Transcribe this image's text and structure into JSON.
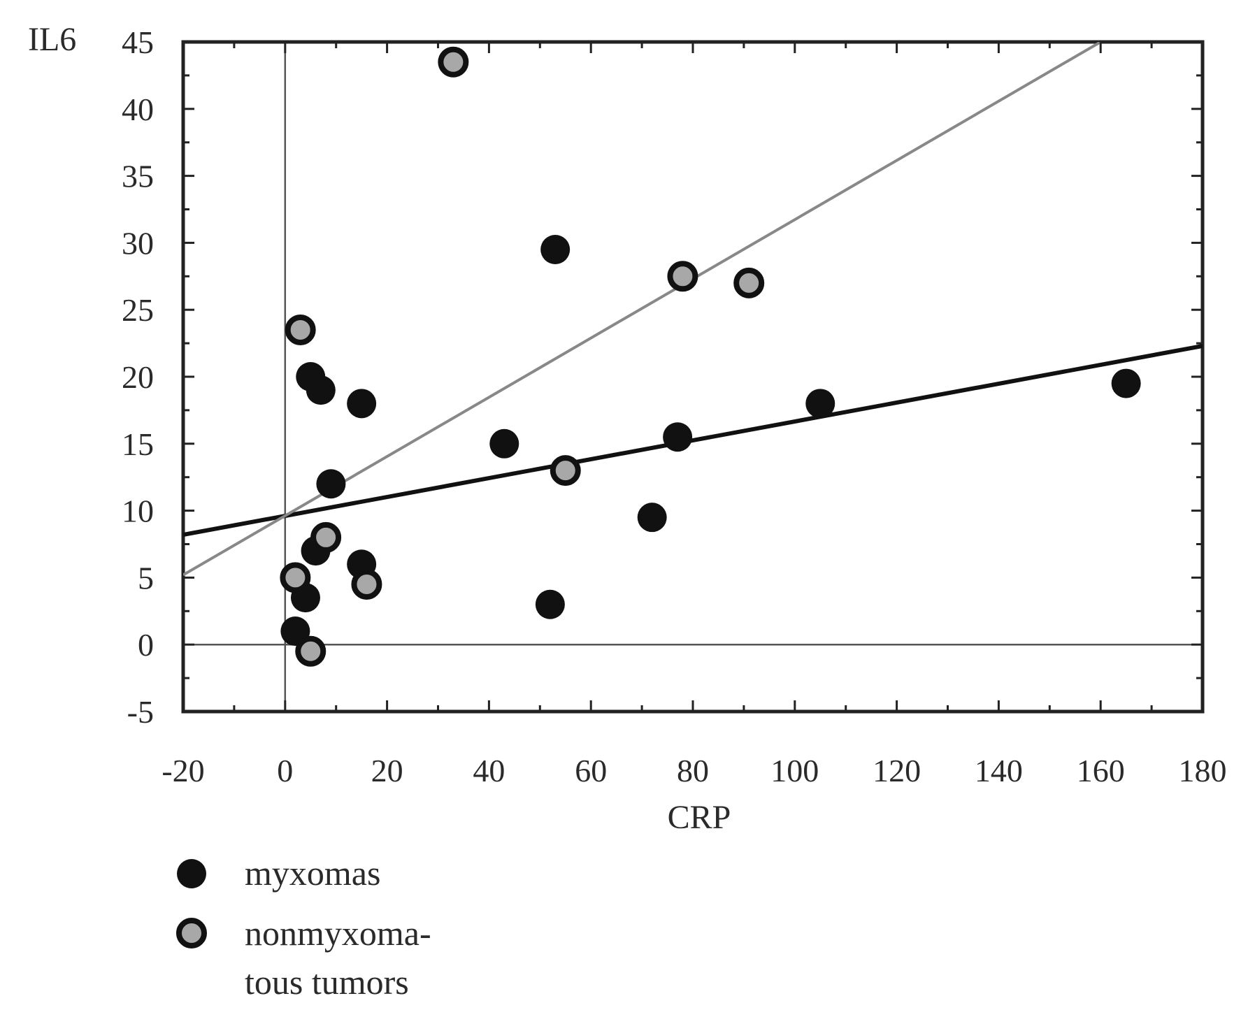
{
  "chart_data": {
    "type": "scatter",
    "xlabel": "CRP",
    "ylabel": "IL6",
    "xlim": [
      -20,
      180
    ],
    "ylim": [
      -5,
      45
    ],
    "xticks": [
      -20,
      0,
      20,
      40,
      60,
      80,
      100,
      120,
      140,
      160,
      180
    ],
    "yticks": [
      -5,
      0,
      5,
      10,
      15,
      20,
      25,
      30,
      35,
      40,
      45
    ],
    "xtick_labels": [
      "-20",
      "0",
      "20",
      "40",
      "60",
      "80",
      "100",
      "120",
      "140",
      "160",
      "180"
    ],
    "ytick_labels": [
      "-5",
      "0",
      "5",
      "10",
      "15",
      "20",
      "25",
      "30",
      "35",
      "40",
      "45"
    ],
    "grid": false,
    "reference_lines": {
      "x_zero": true,
      "y_zero": true
    },
    "legend": {
      "position": "below-left"
    },
    "series": [
      {
        "name": "myxomas",
        "marker": "filled-circle",
        "color": "#111111",
        "x": [
          53,
          5,
          7,
          15,
          9,
          43,
          77,
          105,
          165,
          72,
          15,
          6,
          4,
          2,
          52
        ],
        "y": [
          29.5,
          20,
          19,
          18,
          12,
          15,
          15.5,
          18,
          19.5,
          9.5,
          6,
          7,
          3.5,
          1,
          3
        ],
        "trendline": {
          "x": [
            -20,
            180
          ],
          "y": [
            8.2,
            22.3
          ]
        }
      },
      {
        "name": "nonmyxomatous tumors",
        "legend_label_lines": [
          "nonmyxoma-",
          "tous tumors"
        ],
        "marker": "ring-circle",
        "color": "#111111",
        "fill": "#a8a8a8",
        "x": [
          33,
          3,
          78,
          91,
          55,
          8,
          2,
          16,
          5
        ],
        "y": [
          43.5,
          23.5,
          27.5,
          27,
          13,
          8,
          5,
          4.5,
          -0.5
        ],
        "trendline": {
          "x": [
            -20,
            160
          ],
          "y": [
            5.2,
            45
          ]
        }
      }
    ]
  }
}
